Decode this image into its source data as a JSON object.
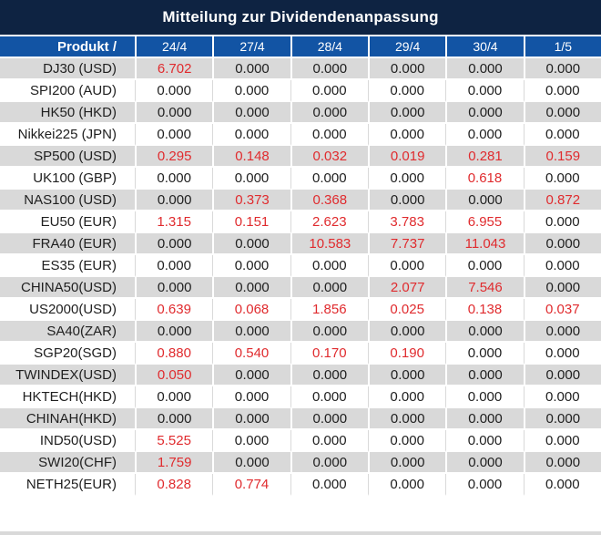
{
  "title": "Mitteilung zur Dividendenanpassung",
  "table": {
    "product_header": "Produkt /",
    "date_columns": [
      "24/4",
      "27/4",
      "28/4",
      "29/4",
      "30/4",
      "1/5"
    ],
    "rows": [
      {
        "product": "DJ30 (USD)",
        "values": [
          "6.702",
          "0.000",
          "0.000",
          "0.000",
          "0.000",
          "0.000"
        ]
      },
      {
        "product": "SPI200 (AUD)",
        "values": [
          "0.000",
          "0.000",
          "0.000",
          "0.000",
          "0.000",
          "0.000"
        ]
      },
      {
        "product": "HK50 (HKD)",
        "values": [
          "0.000",
          "0.000",
          "0.000",
          "0.000",
          "0.000",
          "0.000"
        ]
      },
      {
        "product": "Nikkei225 (JPN)",
        "values": [
          "0.000",
          "0.000",
          "0.000",
          "0.000",
          "0.000",
          "0.000"
        ]
      },
      {
        "product": "SP500 (USD)",
        "values": [
          "0.295",
          "0.148",
          "0.032",
          "0.019",
          "0.281",
          "0.159"
        ]
      },
      {
        "product": "UK100 (GBP)",
        "values": [
          "0.000",
          "0.000",
          "0.000",
          "0.000",
          "0.618",
          "0.000"
        ]
      },
      {
        "product": "NAS100 (USD)",
        "values": [
          "0.000",
          "0.373",
          "0.368",
          "0.000",
          "0.000",
          "0.872"
        ]
      },
      {
        "product": "EU50 (EUR)",
        "values": [
          "1.315",
          "0.151",
          "2.623",
          "3.783",
          "6.955",
          "0.000"
        ]
      },
      {
        "product": "FRA40 (EUR)",
        "values": [
          "0.000",
          "0.000",
          "10.583",
          "7.737",
          "11.043",
          "0.000"
        ]
      },
      {
        "product": "ES35 (EUR)",
        "values": [
          "0.000",
          "0.000",
          "0.000",
          "0.000",
          "0.000",
          "0.000"
        ]
      },
      {
        "product": "CHINA50(USD)",
        "values": [
          "0.000",
          "0.000",
          "0.000",
          "2.077",
          "7.546",
          "0.000"
        ]
      },
      {
        "product": "US2000(USD)",
        "values": [
          "0.639",
          "0.068",
          "1.856",
          "0.025",
          "0.138",
          "0.037"
        ]
      },
      {
        "product": "SA40(ZAR)",
        "values": [
          "0.000",
          "0.000",
          "0.000",
          "0.000",
          "0.000",
          "0.000"
        ]
      },
      {
        "product": "SGP20(SGD)",
        "values": [
          "0.880",
          "0.540",
          "0.170",
          "0.190",
          "0.000",
          "0.000"
        ]
      },
      {
        "product": "TWINDEX(USD)",
        "values": [
          "0.050",
          "0.000",
          "0.000",
          "0.000",
          "0.000",
          "0.000"
        ]
      },
      {
        "product": "HKTECH(HKD)",
        "values": [
          "0.000",
          "0.000",
          "0.000",
          "0.000",
          "0.000",
          "0.000"
        ]
      },
      {
        "product": "CHINAH(HKD)",
        "values": [
          "0.000",
          "0.000",
          "0.000",
          "0.000",
          "0.000",
          "0.000"
        ]
      },
      {
        "product": "IND50(USD)",
        "values": [
          "5.525",
          "0.000",
          "0.000",
          "0.000",
          "0.000",
          "0.000"
        ]
      },
      {
        "product": "SWI20(CHF)",
        "values": [
          "1.759",
          "0.000",
          "0.000",
          "0.000",
          "0.000",
          "0.000"
        ]
      },
      {
        "product": "NETH25(EUR)",
        "values": [
          "0.828",
          "0.774",
          "0.000",
          "0.000",
          "0.000",
          "0.000"
        ]
      }
    ]
  },
  "colors": {
    "title_bg": "#0e2342",
    "header_bg": "#1254a4",
    "row_alt_bg": "#d9d9d9",
    "row_bg": "#ffffff",
    "value_highlight": "#e02b2e",
    "text": "#202020"
  }
}
